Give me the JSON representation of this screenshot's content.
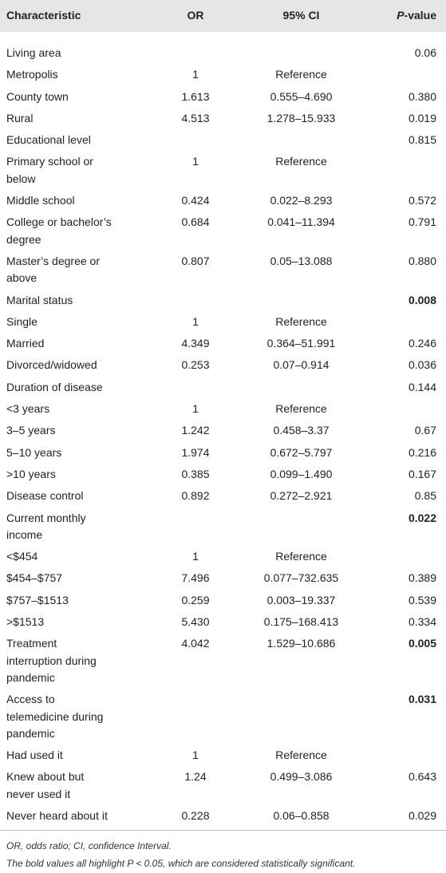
{
  "table": {
    "header": [
      "Characteristic",
      "OR",
      "95% CI",
      "P-value"
    ],
    "rows": [
      [
        "Living area",
        null,
        null,
        "0.06"
      ],
      [
        "Metropolis",
        "1",
        "Reference",
        null
      ],
      [
        "County town",
        "1.613",
        "0.555–4.690",
        "0.380"
      ],
      [
        "Rural",
        "4.513",
        "1.278–15.933",
        "0.019"
      ],
      [
        "Educational level",
        null,
        null,
        "0.815"
      ],
      [
        "Primary school or below",
        "1",
        "Reference",
        null
      ],
      [
        "Middle school",
        "0.424",
        "0.022–8.293",
        "0.572"
      ],
      [
        "College or bachelor’s degree",
        "0.684",
        "0.041–11.394",
        "0.791"
      ],
      [
        "Master’s degree or above",
        "0.807",
        "0.05–13.088",
        "0.880"
      ],
      [
        "Marital status",
        null,
        null,
        {
          "text": "0.008",
          "bold": true
        }
      ],
      [
        "Single",
        "1",
        "Reference",
        null
      ],
      [
        "Married",
        "4.349",
        "0.364–51.991",
        "0.246"
      ],
      [
        "Divorced/widowed",
        "0.253",
        "0.07–0.914",
        "0.036"
      ],
      [
        "Duration of disease",
        null,
        null,
        "0.144"
      ],
      [
        "<3 years",
        "1",
        "Reference",
        null
      ],
      [
        "3–5 years",
        "1.242",
        "0.458–3.37",
        "0.67"
      ],
      [
        "5–10 years",
        "1.974",
        "0.672–5.797",
        "0.216"
      ],
      [
        ">10 years",
        "0.385",
        "0.099–1.490",
        "0.167"
      ],
      [
        "Disease control",
        "0.892",
        "0.272–2.921",
        "0.85"
      ],
      [
        "Current monthly income",
        null,
        null,
        {
          "text": "0.022",
          "bold": true
        }
      ],
      [
        "<$454",
        "1",
        "Reference",
        null
      ],
      [
        "$454–$757",
        "7.496",
        "0.077–732.635",
        "0.389"
      ],
      [
        "$757–$1513",
        "0.259",
        "0.003–19.337",
        "0.539"
      ],
      [
        ">$1513",
        "5.430",
        "0.175–168.413",
        "0.334"
      ],
      [
        "Treatment interruption during pandemic",
        "4.042",
        "1.529–10.686",
        {
          "text": "0.005",
          "bold": true
        }
      ],
      [
        "Access to telemedicine during pandemic",
        null,
        null,
        {
          "text": "0.031",
          "bold": true
        }
      ],
      [
        "Had used it",
        "1",
        "Reference",
        null
      ],
      [
        "Knew about but never used it",
        "1.24",
        "0.499–3.086",
        "0.643"
      ],
      [
        "Never heard about it",
        "0.228",
        "0.06–0.858",
        "0.029"
      ]
    ],
    "footnotes": [
      "OR, odds ratio; CI, confidence Interval.",
      "The bold values all highlight P < 0.05, which are considered statistically significant."
    ]
  }
}
